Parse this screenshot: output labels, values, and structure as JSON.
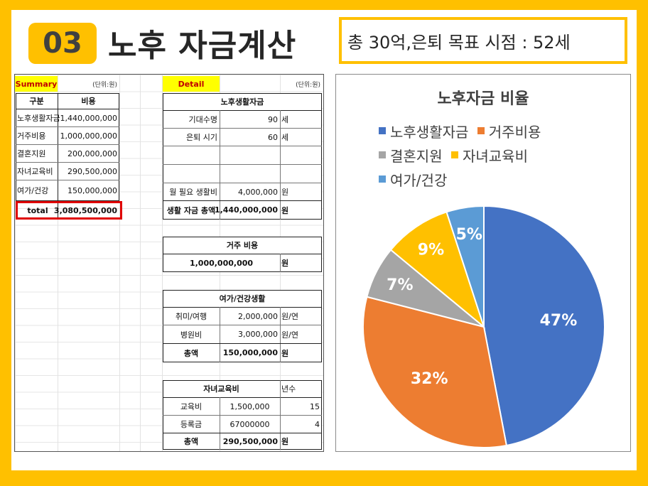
{
  "header": {
    "badge": "03",
    "title": "노후 자금계산",
    "goal": "총 30억,은퇴 목표 시점 : 52세"
  },
  "summary": {
    "label": "Summary",
    "unit": "(단위:원)",
    "col_header": [
      "구분",
      "비용"
    ],
    "rows": [
      {
        "name": "노후생활자금",
        "value": "1,440,000,000"
      },
      {
        "name": "거주비용",
        "value": "1,000,000,000"
      },
      {
        "name": "결혼지원",
        "value": "200,000,000"
      },
      {
        "name": "자녀교육비",
        "value": "290,500,000"
      },
      {
        "name": "여가/건강",
        "value": "150,000,000"
      }
    ],
    "total": {
      "name": "total",
      "value": "3,080,500,000"
    }
  },
  "detail": {
    "label": "Detail",
    "unit": "(단위:원)",
    "living": {
      "title": "노후생활자금",
      "rows": [
        {
          "name": "기대수명",
          "value": "90",
          "unit": "세"
        },
        {
          "name": "은퇴 시기",
          "value": "60",
          "unit": "세"
        },
        {
          "name": "",
          "value": "",
          "unit": ""
        },
        {
          "name": "",
          "value": "",
          "unit": ""
        },
        {
          "name": "월 필요 생활비",
          "value": "4,000,000",
          "unit": "원"
        }
      ],
      "total": {
        "name": "생활 자금 총액",
        "value": "1,440,000,000",
        "unit": "원"
      }
    },
    "housing": {
      "title": "거주 비용",
      "value": "1,000,000,000",
      "unit": "원"
    },
    "leisure": {
      "title": "여가/건강생활",
      "rows": [
        {
          "name": "취미/여행",
          "value": "2,000,000",
          "unit": "원/연"
        },
        {
          "name": "병원비",
          "value": "3,000,000",
          "unit": "원/연"
        }
      ],
      "total": {
        "name": "총액",
        "value": "150,000,000",
        "unit": "원"
      }
    },
    "education": {
      "title": "자녀교육비",
      "extra_header": "년수",
      "rows": [
        {
          "name": "교육비",
          "value": "1,500,000",
          "years": "15"
        },
        {
          "name": "등록금",
          "value": "67000000",
          "years": "4"
        }
      ],
      "total": {
        "name": "총액",
        "value": "290,500,000",
        "unit": "원"
      }
    }
  },
  "chart_data": {
    "type": "pie",
    "title": "노후자금 비율",
    "legend_position": "top",
    "categories": [
      "노후생활자금",
      "거주비용",
      "결혼지원",
      "자녀교육비",
      "여가/건강"
    ],
    "values": [
      47,
      32,
      7,
      9,
      5
    ],
    "labels": [
      "47%",
      "32%",
      "7%",
      "9%",
      "5%"
    ],
    "colors": [
      "#4472C4",
      "#ED7D31",
      "#A5A5A5",
      "#FFC000",
      "#5B9BD5"
    ]
  }
}
